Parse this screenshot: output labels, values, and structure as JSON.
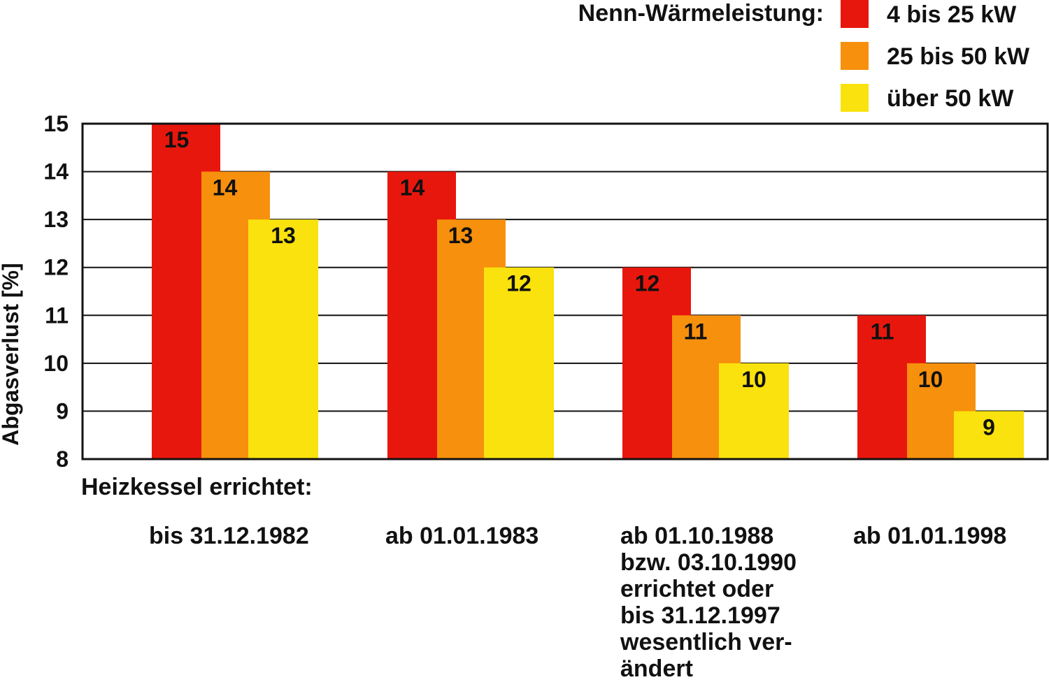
{
  "chart_data": {
    "type": "bar",
    "title": "",
    "ylabel": "Abgasverlust [%]",
    "xlabel": "Heizkessel errichtet:",
    "ylim": [
      8,
      15
    ],
    "yticks": [
      8,
      9,
      10,
      11,
      12,
      13,
      14,
      15
    ],
    "grid": true,
    "legend_title": "Nenn-Wärmeleistung:",
    "legend_position": "top-right",
    "categories": [
      [
        "bis 31.12.1982"
      ],
      [
        "ab 01.01.1983"
      ],
      [
        "ab 01.10.1988",
        "bzw. 03.10.1990",
        "errichtet oder",
        "bis 31.12.1997",
        "wesentlich ver-",
        "ändert"
      ],
      [
        "ab 01.01.1998"
      ]
    ],
    "series": [
      {
        "name": "4 bis 25 kW",
        "color": "#e8170d",
        "values": [
          15,
          14,
          12,
          11
        ]
      },
      {
        "name": "25 bis 50 kW",
        "color": "#f7900d",
        "values": [
          14,
          13,
          11,
          10
        ]
      },
      {
        "name": "über 50 kW",
        "color": "#f9e20d",
        "values": [
          13,
          12,
          10,
          9
        ]
      }
    ]
  }
}
